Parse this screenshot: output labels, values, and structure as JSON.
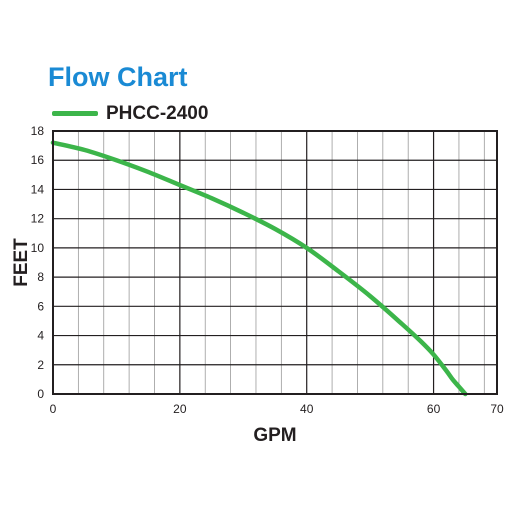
{
  "chart_data": {
    "type": "line",
    "title": "Flow Chart",
    "xlabel": "GPM",
    "ylabel": "FEET",
    "xlim": [
      0,
      70
    ],
    "ylim": [
      0,
      18
    ],
    "x_ticks": [
      0,
      20,
      40,
      60,
      70
    ],
    "y_ticks": [
      0,
      2,
      4,
      6,
      8,
      10,
      12,
      14,
      16,
      18
    ],
    "grid": true,
    "legend_position": "top-left",
    "series": [
      {
        "name": "PHCC-2400",
        "color": "#3cb54a",
        "x": [
          0,
          5,
          10,
          15,
          20,
          25,
          30,
          35,
          40,
          45,
          50,
          55,
          58,
          60,
          62,
          63,
          64,
          65
        ],
        "y": [
          17.2,
          16.7,
          16.0,
          15.2,
          14.3,
          13.4,
          12.4,
          11.3,
          10.0,
          8.4,
          6.7,
          4.8,
          3.6,
          2.7,
          1.6,
          1.0,
          0.5,
          0
        ]
      }
    ]
  }
}
